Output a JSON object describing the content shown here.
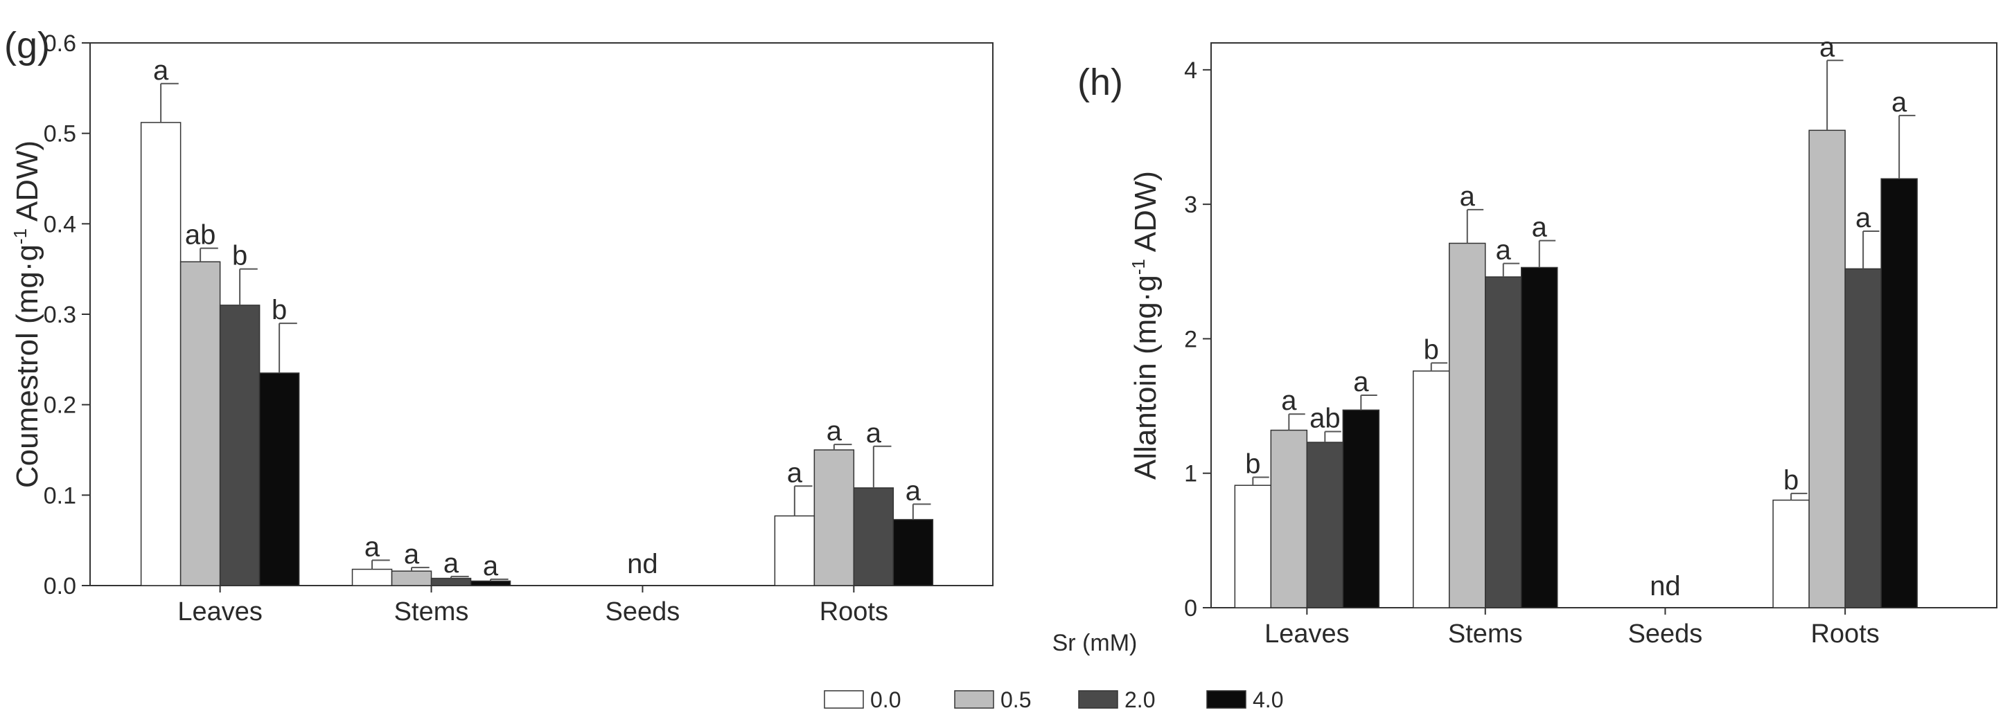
{
  "legend": {
    "title": "Sr (mM)",
    "entries": [
      {
        "label": "0.0",
        "color": "#ffffff"
      },
      {
        "label": "0.5",
        "color": "#bdbdbd"
      },
      {
        "label": "2.0",
        "color": "#4a4a4a"
      },
      {
        "label": "4.0",
        "color": "#0c0c0c"
      }
    ]
  },
  "chart_data": [
    {
      "type": "bar",
      "panel_label": "(g)",
      "categories": [
        "Leaves",
        "Stems",
        "Seeds",
        "Roots"
      ],
      "ylabel_main": "Coumestrol (mg·g",
      "ylabel_sup": "-1",
      "ylabel_tail": " ADW)",
      "ylim": [
        0,
        0.6
      ],
      "yticks": [
        "0.0",
        "0.1",
        "0.2",
        "0.3",
        "0.4",
        "0.5",
        "0.6"
      ],
      "series": [
        {
          "name": "0.0",
          "values": [
            0.512,
            0.018,
            0,
            0.077
          ],
          "errors": [
            0.043,
            0.01,
            0,
            0.033
          ],
          "sig": [
            "a",
            "a",
            "",
            "a"
          ]
        },
        {
          "name": "0.5",
          "values": [
            0.358,
            0.016,
            0,
            0.15
          ],
          "errors": [
            0.015,
            0.004,
            0,
            0.006
          ],
          "sig": [
            "ab",
            "a",
            "",
            "a"
          ]
        },
        {
          "name": "2.0",
          "values": [
            0.31,
            0.008,
            0,
            0.108
          ],
          "errors": [
            0.04,
            0.002,
            0,
            0.046
          ],
          "sig": [
            "b",
            "a",
            "",
            "a"
          ]
        },
        {
          "name": "4.0",
          "values": [
            0.235,
            0.005,
            0,
            0.073
          ],
          "errors": [
            0.055,
            0.002,
            0,
            0.017
          ],
          "sig": [
            "b",
            "a",
            "",
            "a"
          ]
        }
      ],
      "annotations": [
        {
          "category": "Seeds",
          "text": "nd"
        }
      ]
    },
    {
      "type": "bar",
      "panel_label": "(h)",
      "categories": [
        "Leaves",
        "Stems",
        "Seeds",
        "Roots"
      ],
      "ylabel_main": "Allantoin (mg·g",
      "ylabel_sup": "-1",
      "ylabel_tail": " ADW)",
      "ylim": [
        0,
        4.2
      ],
      "yticks": [
        "0",
        "1",
        "2",
        "3",
        "4"
      ],
      "series": [
        {
          "name": "0.0",
          "values": [
            0.91,
            1.76,
            0,
            0.8
          ],
          "errors": [
            0.06,
            0.06,
            0,
            0.05
          ],
          "sig": [
            "b",
            "b",
            "",
            "b"
          ]
        },
        {
          "name": "0.5",
          "values": [
            1.32,
            2.71,
            0,
            3.55
          ],
          "errors": [
            0.12,
            0.25,
            0,
            0.52
          ],
          "sig": [
            "a",
            "a",
            "",
            "a"
          ]
        },
        {
          "name": "2.0",
          "values": [
            1.23,
            2.46,
            0,
            2.52
          ],
          "errors": [
            0.08,
            0.1,
            0,
            0.28
          ],
          "sig": [
            "ab",
            "a",
            "",
            "a"
          ]
        },
        {
          "name": "4.0",
          "values": [
            1.47,
            2.53,
            0,
            3.19
          ],
          "errors": [
            0.11,
            0.2,
            0,
            0.47
          ],
          "sig": [
            "a",
            "a",
            "",
            "a"
          ]
        }
      ],
      "annotations": [
        {
          "category": "Seeds",
          "text": "nd"
        }
      ]
    }
  ]
}
